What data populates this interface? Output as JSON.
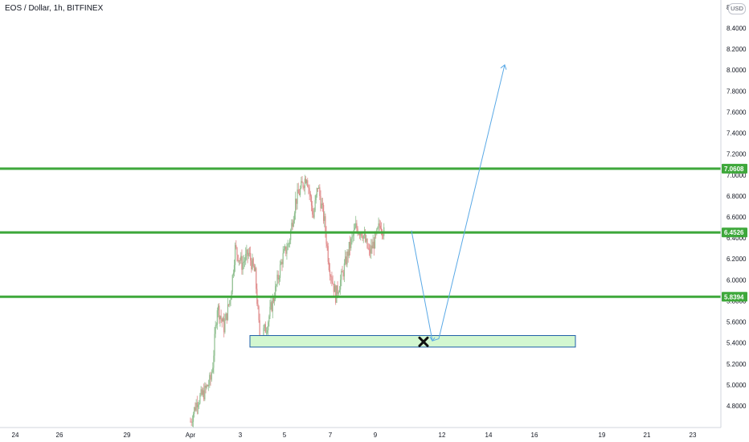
{
  "header": {
    "symbol_title": "EOS / Dollar, 1h, BITFINEX",
    "currency": "USD"
  },
  "colors": {
    "level_line": "#3ea83b",
    "zone_fill": "#d3f7d0",
    "zone_border": "#1e5fa8",
    "arrow": "#5aa9e6",
    "candle_up": "#8fbf8f",
    "candle_down": "#e08a8a"
  },
  "chart_data": {
    "type": "candlestick",
    "symbol": "EOS / Dollar",
    "timeframe": "1h",
    "exchange": "BITFINEX",
    "y_axis": {
      "ticks": [
        "8.4000",
        "8.2000",
        "8.0000",
        "7.8000",
        "7.6000",
        "7.4000",
        "7.2000",
        "7.0000",
        "6.8000",
        "6.6000",
        "6.4000",
        "6.2000",
        "6.0000",
        "5.8000",
        "5.6000",
        "5.4000",
        "5.2000",
        "5.0000",
        "4.8000"
      ],
      "top_partial_label": "8.",
      "ylim": [
        4.65,
        8.55
      ]
    },
    "x_axis": {
      "ticks": [
        "24",
        "26",
        "29",
        "Apr",
        "3",
        "5",
        "7",
        "9",
        "12",
        "14",
        "16",
        "19",
        "21",
        "23"
      ]
    },
    "price_levels": [
      {
        "label": "7.0608",
        "value": 7.0608
      },
      {
        "label": "6.4526",
        "value": 6.4526
      },
      {
        "label": "5.8394",
        "value": 5.8394
      }
    ],
    "target_zone": {
      "low": 5.36,
      "high": 5.47,
      "x_start": "Apr 3.4",
      "x_end": "Apr 17.8"
    },
    "projection": [
      {
        "x": "Apr 10.4",
        "y": 6.47
      },
      {
        "x": "Apr 11.5",
        "y": 5.42
      },
      {
        "x": "Apr 11.7",
        "y": 5.44
      },
      {
        "x": "Apr 14.7",
        "y": 8.05
      }
    ],
    "invalidation_mark": {
      "x": "Apr 11.0",
      "y": 5.41,
      "symbol": "✖"
    },
    "price_path": [
      {
        "x": 0.0,
        "y": 4.65
      },
      {
        "x": 0.3,
        "y": 4.85
      },
      {
        "x": 0.6,
        "y": 4.92
      },
      {
        "x": 0.9,
        "y": 5.05
      },
      {
        "x": 1.0,
        "y": 5.2
      },
      {
        "x": 1.2,
        "y": 5.75
      },
      {
        "x": 1.5,
        "y": 5.55
      },
      {
        "x": 1.8,
        "y": 5.85
      },
      {
        "x": 2.0,
        "y": 6.3
      },
      {
        "x": 2.3,
        "y": 6.15
      },
      {
        "x": 2.6,
        "y": 6.25
      },
      {
        "x": 2.9,
        "y": 6.05
      },
      {
        "x": 3.1,
        "y": 5.45
      },
      {
        "x": 3.4,
        "y": 5.55
      },
      {
        "x": 3.8,
        "y": 5.9
      },
      {
        "x": 4.1,
        "y": 6.2
      },
      {
        "x": 4.4,
        "y": 6.35
      },
      {
        "x": 4.7,
        "y": 6.75
      },
      {
        "x": 5.0,
        "y": 6.9
      },
      {
        "x": 5.2,
        "y": 7.0
      },
      {
        "x": 5.5,
        "y": 6.6
      },
      {
        "x": 5.7,
        "y": 6.9
      },
      {
        "x": 6.0,
        "y": 6.55
      },
      {
        "x": 6.2,
        "y": 6.15
      },
      {
        "x": 6.5,
        "y": 5.85
      },
      {
        "x": 6.8,
        "y": 6.05
      },
      {
        "x": 7.1,
        "y": 6.3
      },
      {
        "x": 7.4,
        "y": 6.5
      },
      {
        "x": 7.7,
        "y": 6.45
      },
      {
        "x": 8.0,
        "y": 6.25
      },
      {
        "x": 8.3,
        "y": 6.4
      },
      {
        "x": 8.5,
        "y": 6.55
      },
      {
        "x": 8.7,
        "y": 6.42
      }
    ]
  }
}
